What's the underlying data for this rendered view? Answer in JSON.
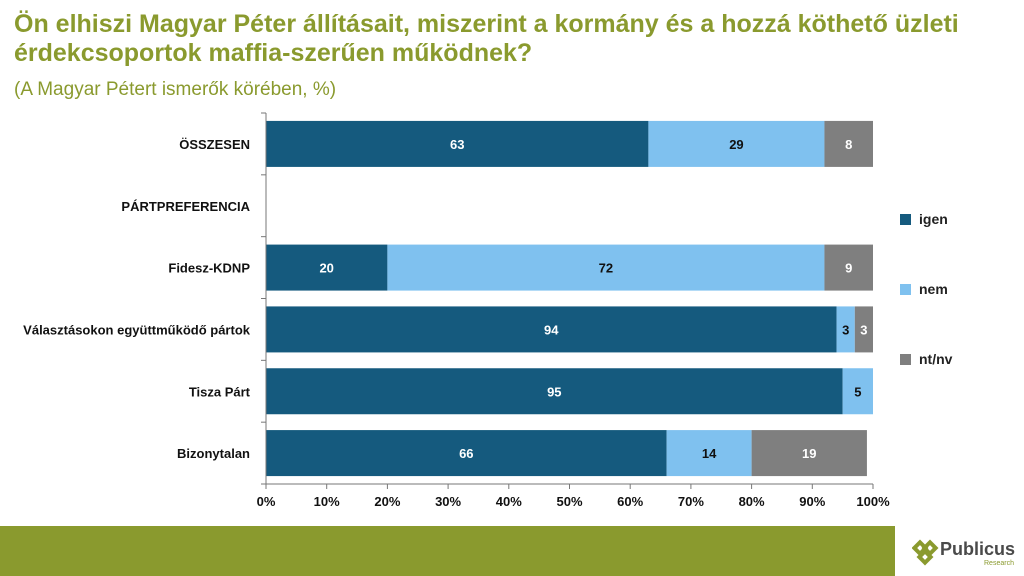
{
  "header": {
    "title": "Ön elhiszi Magyar Péter állításait, miszerint a kormány és a hozzá köthető üzleti érdekcsoportok maffia-szerűen működnek?",
    "subtitle": "(A Magyar Pétert ismerők körében, %)"
  },
  "brand": {
    "name": "Publicus",
    "tagline": "Research",
    "color": "#8a9a2e"
  },
  "chart_data": {
    "type": "bar",
    "orientation": "horizontal",
    "stacked": true,
    "categories": [
      "ÖSSZESEN",
      "PÁRTPREFERENCIA",
      "Fidesz-KDNP",
      "Választásokon együttműködő pártok",
      "Tisza Párt",
      "Bizonytalan"
    ],
    "series": [
      {
        "name": "igen",
        "color": "#155a7e",
        "values": [
          63,
          null,
          20,
          94,
          95,
          66
        ]
      },
      {
        "name": "nem",
        "color": "#7fc1ef",
        "values": [
          29,
          null,
          72,
          3,
          5,
          14
        ]
      },
      {
        "name": "nt/nv",
        "color": "#7f7f7f",
        "values": [
          8,
          null,
          9,
          3,
          0,
          19
        ]
      }
    ],
    "xlim": [
      0,
      100
    ],
    "xticks": [
      "0%",
      "10%",
      "20%",
      "30%",
      "40%",
      "50%",
      "60%",
      "70%",
      "80%",
      "90%",
      "100%"
    ],
    "legend_position": "right"
  }
}
